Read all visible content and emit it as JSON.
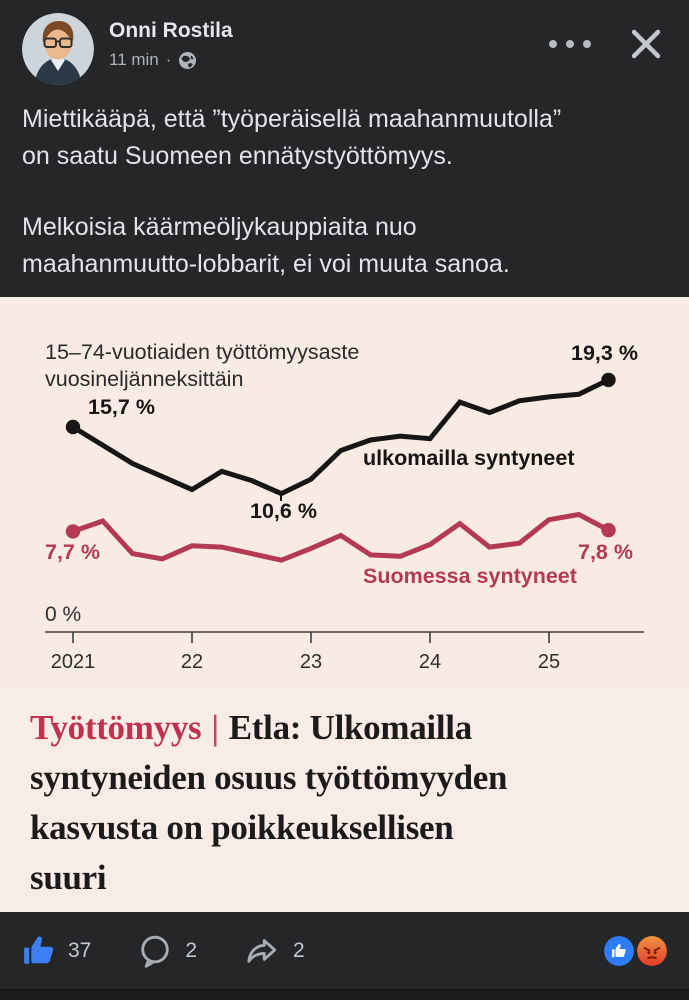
{
  "header": {
    "author": "Onni Rostila",
    "timestamp": "11 min",
    "separator": "·",
    "visibility": "public"
  },
  "post": {
    "lines": [
      "Miettikääpä, että ”työperäisellä maahanmuutolla”",
      "on saatu Suomeen ennätystyöttömyys.",
      "",
      "Melkoisia käärmeöljykauppiaita nuo",
      "maahanmuutto-lobbarit, ei voi muuta sanoa."
    ]
  },
  "attachment": {
    "headline": {
      "kicker": "Työttömyys",
      "separator": "|",
      "title_lines": [
        "Etla: Ulkomailla",
        "syntyneiden osuus työttömyyden",
        "kasvusta on poikkeuksellisen",
        "suuri"
      ]
    }
  },
  "chart_data": {
    "type": "line",
    "title": "15–74-vuotiaiden työttömyysaste vuosineljänneksittäin",
    "title_lines": [
      "15–74-vuotiaiden työttömyysaste",
      "vuosineljänneksittäin"
    ],
    "x_unit": "quarter",
    "x": [
      "2021Q1",
      "2021Q2",
      "2021Q3",
      "2021Q4",
      "2022Q1",
      "2022Q2",
      "2022Q3",
      "2022Q4",
      "2023Q1",
      "2023Q2",
      "2023Q3",
      "2023Q4",
      "2024Q1",
      "2024Q2",
      "2024Q3",
      "2024Q4",
      "2025Q1",
      "2025Q2",
      "2025Q3"
    ],
    "x_tick_labels": [
      "2021",
      "22",
      "23",
      "24",
      "25"
    ],
    "ylim": [
      0,
      21
    ],
    "baseline_label": "0 %",
    "grid": false,
    "legend": "inline-labels",
    "series": [
      {
        "name": "ulkomailla syntyneet",
        "color": "#181614",
        "values": [
          15.7,
          14.3,
          12.9,
          11.9,
          10.9,
          12.3,
          11.6,
          10.6,
          11.7,
          13.9,
          14.7,
          15.0,
          14.8,
          17.6,
          16.8,
          17.7,
          18.0,
          18.2,
          19.3
        ],
        "annotations": {
          "start": "15,7 %",
          "min": "10,6 %",
          "end": "19,3 %"
        }
      },
      {
        "name": "Suomessa syntyneet",
        "color": "#b43a52",
        "values": [
          7.7,
          8.5,
          6.0,
          5.6,
          6.6,
          6.5,
          6.0,
          5.5,
          6.4,
          7.4,
          5.9,
          5.8,
          6.7,
          8.3,
          6.5,
          6.8,
          8.6,
          9.0,
          7.8
        ],
        "annotations": {
          "start": "7,7 %",
          "end": "7,8 %"
        }
      }
    ]
  },
  "footer": {
    "like_count": "37",
    "comment_count": "2",
    "share_count": "2",
    "reactions": [
      "like",
      "angry"
    ]
  },
  "colors": {
    "card_bg": "#242628",
    "chart_bg": "#f7ebe4",
    "headline_bg": "#f8ece7",
    "kicker_red": "#c0314e",
    "line_red": "#b43a52",
    "line_black": "#181614",
    "like_blue": "#3d7ff2",
    "icon_gray": "#a9acb1",
    "text_light": "#e2e4e8"
  }
}
